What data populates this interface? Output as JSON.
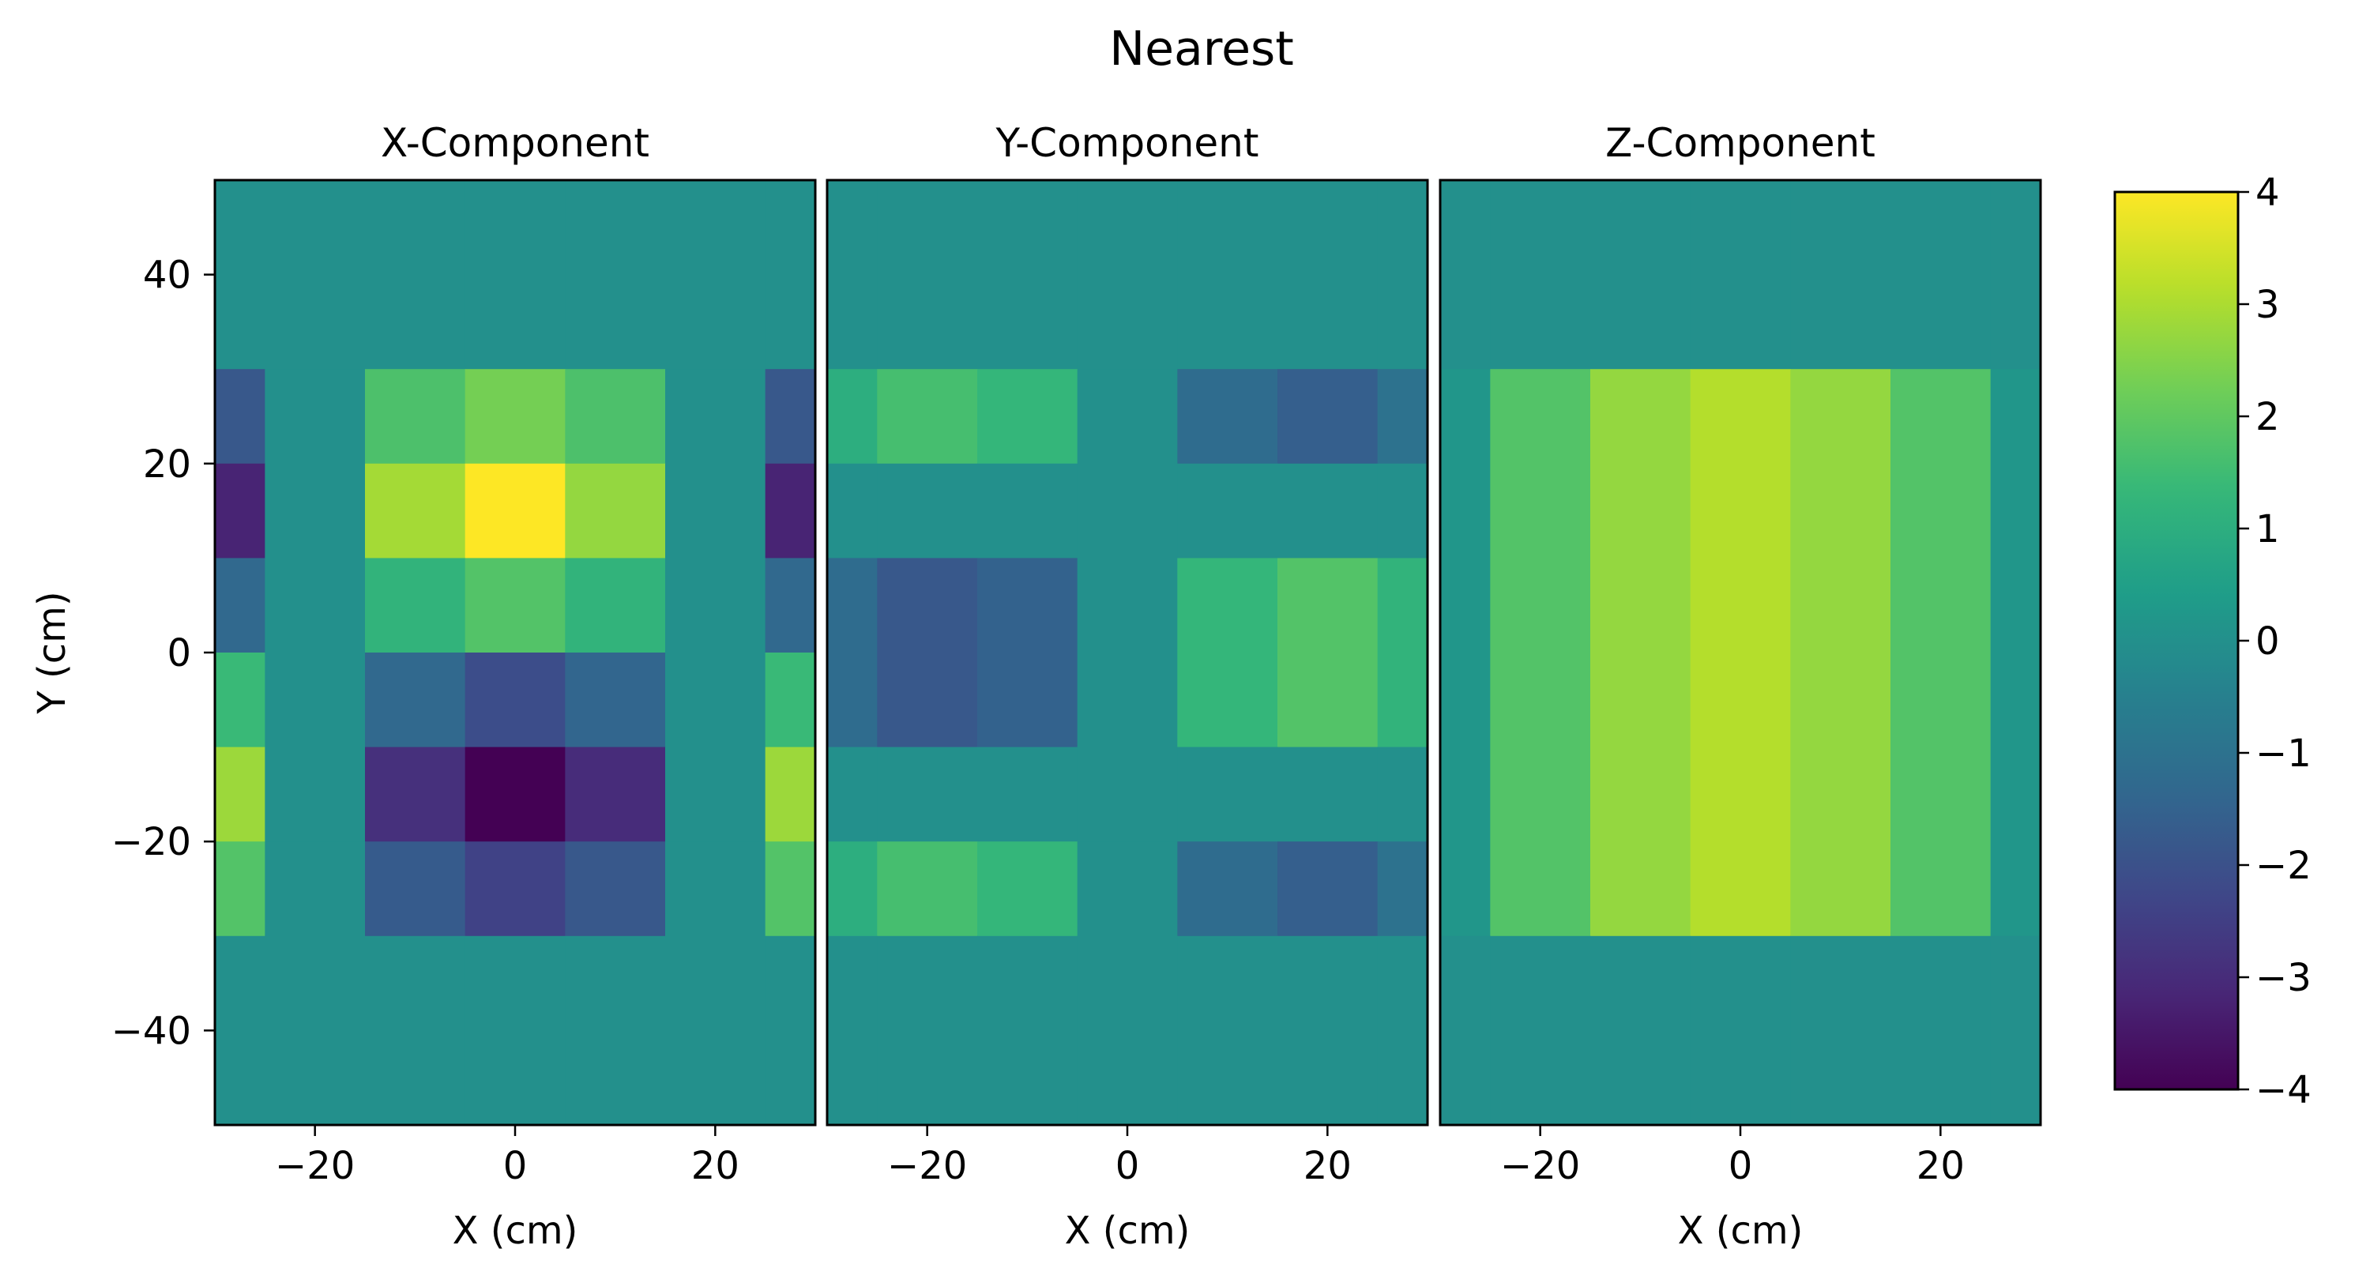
{
  "title": "Nearest",
  "colorbar": {
    "colormap": "viridis",
    "vmin": -4,
    "vmax": 4,
    "ticks": [
      -4,
      -3,
      -2,
      -1,
      0,
      1,
      2,
      3,
      4
    ],
    "tick_labels": [
      "−4",
      "−3",
      "−2",
      "−1",
      "0",
      "1",
      "2",
      "3",
      "4"
    ]
  },
  "chart_data": [
    {
      "type": "heatmap",
      "title": "X-Component",
      "xlabel": "X (cm)",
      "ylabel": "Y (cm)",
      "xlim": [
        -30,
        30
      ],
      "ylim": [
        -50,
        50
      ],
      "x_edges": [
        -30,
        -25,
        -15,
        -5,
        5,
        15,
        25,
        30
      ],
      "y_edges": [
        50,
        30,
        20,
        10,
        0,
        -10,
        -20,
        -30,
        -50
      ],
      "xticks": [
        -20,
        0,
        20
      ],
      "xtick_labels": [
        "−20",
        "0",
        "20"
      ],
      "yticks": [
        40,
        20,
        0,
        -20,
        -40
      ],
      "ytick_labels": [
        "40",
        "20",
        "0",
        "−20",
        "−40"
      ],
      "values": [
        [
          0,
          0,
          0,
          0,
          0,
          0,
          0
        ],
        [
          -1.8,
          0,
          1.7,
          2.3,
          1.7,
          0,
          -1.8
        ],
        [
          -3.2,
          0,
          2.9,
          4.0,
          2.7,
          0,
          -3.2
        ],
        [
          -1.3,
          0,
          1.2,
          1.8,
          1.2,
          0,
          -1.3
        ],
        [
          1.4,
          0,
          -1.3,
          -2.1,
          -1.4,
          0,
          1.4
        ],
        [
          2.8,
          0,
          -2.9,
          -4.0,
          -3.0,
          0,
          2.8
        ],
        [
          1.8,
          0,
          -1.7,
          -2.4,
          -1.8,
          0,
          1.8
        ],
        [
          0,
          0,
          0,
          0,
          0,
          0,
          0
        ]
      ]
    },
    {
      "type": "heatmap",
      "title": "Y-Component",
      "xlabel": "X (cm)",
      "xlim": [
        -30,
        30
      ],
      "ylim": [
        -50,
        50
      ],
      "x_edges": [
        -30,
        -25,
        -15,
        -5,
        5,
        15,
        25,
        30
      ],
      "y_edges": [
        50,
        30,
        20,
        10,
        0,
        -10,
        -20,
        -30,
        -50
      ],
      "xticks": [
        -20,
        0,
        20
      ],
      "xtick_labels": [
        "−20",
        "0",
        "20"
      ],
      "values": [
        [
          0,
          0,
          0,
          0,
          0,
          0,
          0
        ],
        [
          1.0,
          1.6,
          1.3,
          0,
          -1.2,
          -1.6,
          -1.0
        ],
        [
          0,
          0,
          0,
          0,
          0,
          0,
          0
        ],
        [
          -1.2,
          -1.8,
          -1.5,
          0,
          1.3,
          1.8,
          1.2
        ],
        [
          -1.2,
          -1.8,
          -1.5,
          0,
          1.3,
          1.8,
          1.2
        ],
        [
          0,
          0,
          0,
          0,
          0,
          0,
          0
        ],
        [
          1.0,
          1.6,
          1.3,
          0,
          -1.2,
          -1.6,
          -1.0
        ],
        [
          0,
          0,
          0,
          0,
          0,
          0,
          0
        ]
      ]
    },
    {
      "type": "heatmap",
      "title": "Z-Component",
      "xlabel": "X (cm)",
      "xlim": [
        -30,
        30
      ],
      "ylim": [
        -50,
        50
      ],
      "x_edges": [
        -30,
        -25,
        -15,
        -5,
        5,
        15,
        25,
        30
      ],
      "y_edges": [
        50,
        30,
        -30,
        -50
      ],
      "xticks": [
        -20,
        0,
        20
      ],
      "xtick_labels": [
        "−20",
        "0",
        "20"
      ],
      "values": [
        [
          0,
          0,
          0,
          0,
          0,
          0,
          0
        ],
        [
          0.2,
          1.8,
          2.7,
          3.1,
          2.7,
          1.8,
          0.2
        ],
        [
          0,
          0,
          0,
          0,
          0,
          0,
          0
        ]
      ]
    }
  ]
}
